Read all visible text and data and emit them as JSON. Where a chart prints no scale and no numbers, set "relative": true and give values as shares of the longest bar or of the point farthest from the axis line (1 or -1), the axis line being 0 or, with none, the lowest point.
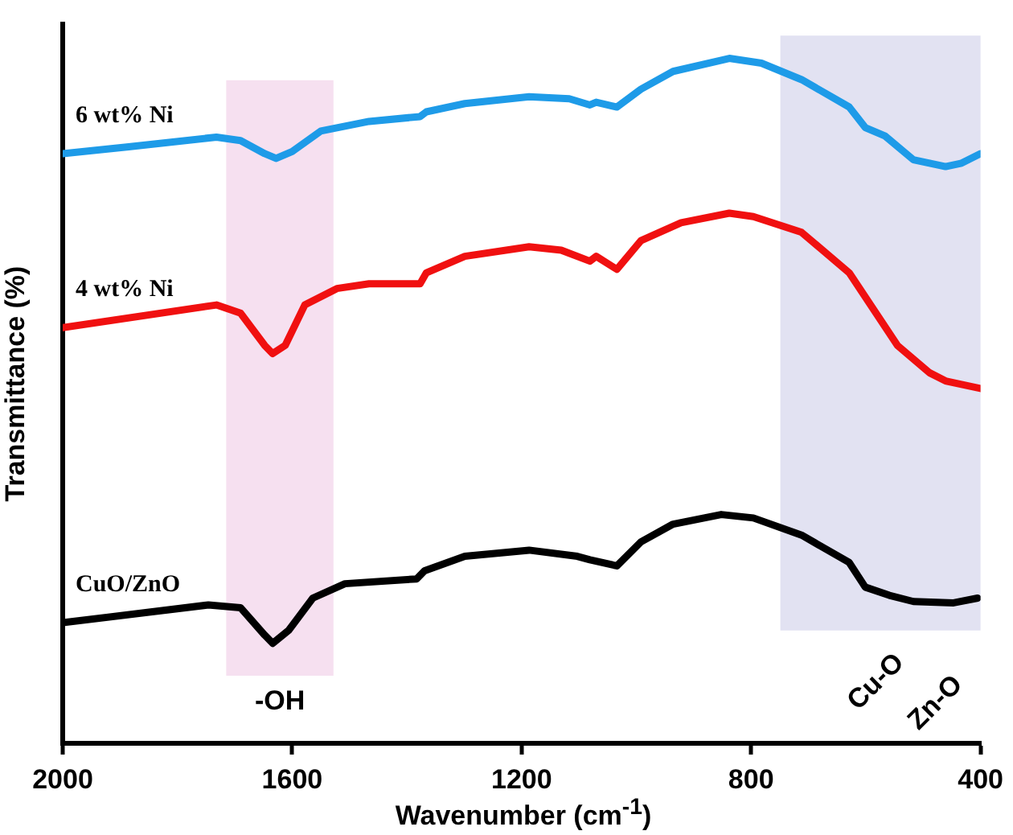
{
  "chart_data": {
    "type": "line",
    "xlabel": "Wavenumber (cm$^{-1}$)",
    "ylabel": "Transmittance (%)",
    "relative": true,
    "xlim": [
      2000,
      400
    ],
    "xticks": [
      2000,
      1600,
      1200,
      800,
      400
    ],
    "grid": false,
    "legend": false,
    "marker": "none",
    "line_style": "solid",
    "series": [
      {
        "name": "6 wt% Ni",
        "color": "#1e9be8",
        "x": [
          2000,
          1885,
          1732,
          1690,
          1648,
          1628,
          1600,
          1550,
          1466,
          1377,
          1366,
          1299,
          1187,
          1117,
          1081,
          1070,
          1034,
          992,
          936,
          838,
          782,
          712,
          629,
          601,
          567,
          517,
          461,
          433,
          400
        ],
        "values": [
          0.861,
          0.871,
          0.885,
          0.88,
          0.861,
          0.854,
          0.864,
          0.894,
          0.908,
          0.915,
          0.922,
          0.934,
          0.944,
          0.941,
          0.932,
          0.936,
          0.929,
          0.955,
          0.981,
          1,
          0.993,
          0.969,
          0.929,
          0.899,
          0.887,
          0.852,
          0.842,
          0.847,
          0.861
        ]
      },
      {
        "name": "4 wt% Ni",
        "color": "#f01010",
        "x": [
          2000,
          1732,
          1690,
          1648,
          1634,
          1612,
          1578,
          1522,
          1466,
          1377,
          1366,
          1299,
          1187,
          1131,
          1081,
          1070,
          1034,
          992,
          922,
          838,
          796,
          712,
          629,
          545,
          489,
          461,
          400
        ],
        "values": [
          0.607,
          0.64,
          0.628,
          0.581,
          0.569,
          0.581,
          0.64,
          0.664,
          0.671,
          0.671,
          0.687,
          0.711,
          0.725,
          0.72,
          0.704,
          0.711,
          0.692,
          0.734,
          0.76,
          0.774,
          0.769,
          0.746,
          0.687,
          0.581,
          0.541,
          0.529,
          0.518
        ]
      },
      {
        "name": "CuO/ZnO",
        "color": "#000000",
        "x": [
          2000,
          1746,
          1690,
          1648,
          1634,
          1606,
          1564,
          1508,
          1383,
          1369,
          1299,
          1187,
          1103,
          1081,
          1034,
          992,
          936,
          852,
          796,
          712,
          629,
          601,
          559,
          517,
          447,
          405
        ],
        "values": [
          0.176,
          0.202,
          0.198,
          0.158,
          0.146,
          0.165,
          0.212,
          0.233,
          0.24,
          0.252,
          0.273,
          0.282,
          0.273,
          0.268,
          0.259,
          0.294,
          0.32,
          0.334,
          0.329,
          0.304,
          0.264,
          0.228,
          0.216,
          0.207,
          0.205,
          0.212
        ]
      }
    ],
    "bands": [
      {
        "axis": "x",
        "from": 1715,
        "to": 1528,
        "label": "-OH",
        "color": "#f6e0f0"
      },
      {
        "axis": "x",
        "from": 749,
        "to": 400,
        "color": "#e2e2f2"
      }
    ],
    "annotations": [
      "Cu-O",
      "Zn-O"
    ]
  }
}
